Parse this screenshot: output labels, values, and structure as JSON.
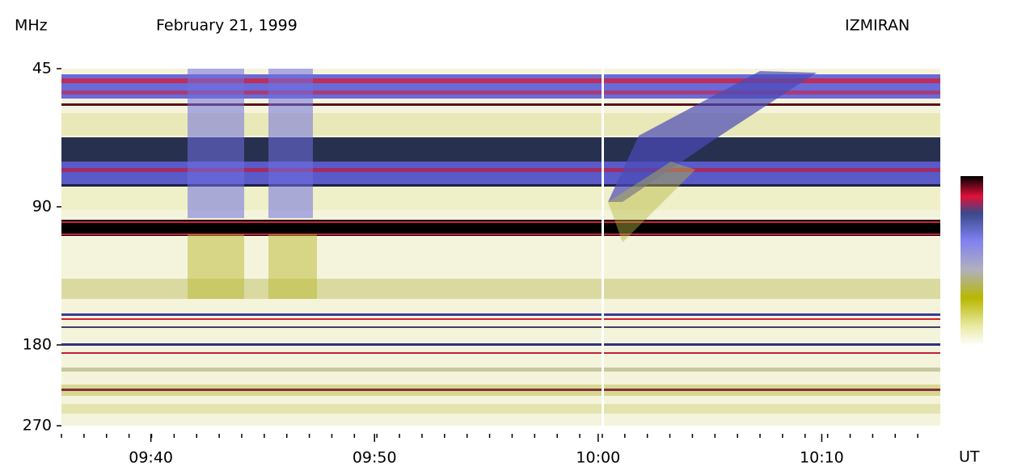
{
  "chart_data": {
    "type": "spectrogram",
    "title": "February 21, 1999",
    "source": "IZMIRAN",
    "y_label": "MHz",
    "x_label": "UT",
    "ylim": [
      45,
      270
    ],
    "yticks": [
      45,
      90,
      180,
      270
    ],
    "log_y": true,
    "xlim": [
      576,
      615.3
    ],
    "xticks": [
      {
        "value": 580,
        "label": "09:40"
      },
      {
        "value": 590,
        "label": "09:50"
      },
      {
        "value": 600,
        "label": "10:00"
      },
      {
        "value": 610,
        "label": "10:10"
      }
    ]
  }
}
